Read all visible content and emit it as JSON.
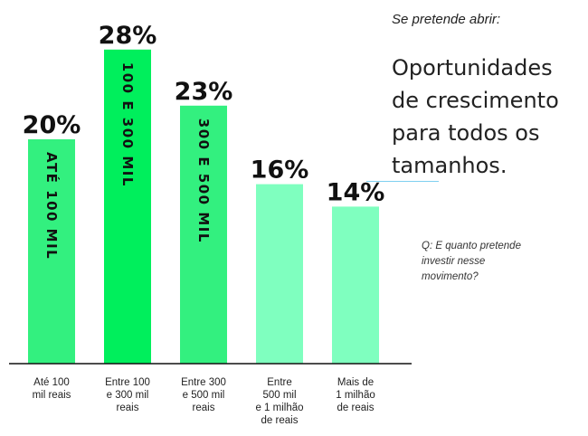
{
  "kicker": "Se pretende abrir:",
  "headline": "Oportunidades\nde crescimento\npara todos os\ntamanhos.",
  "question": "Q: E quanto pretende\ninvestir nesse\nmovimento?",
  "colors": {
    "bar_light": "#7fffbf",
    "bar_mid": "#33f07f",
    "bar_bright": "#00ef5c",
    "accent_line": "#7fd0f0",
    "axis": "#111111"
  },
  "chart_data": {
    "type": "bar",
    "unit": "%",
    "ylim": [
      0,
      30
    ],
    "categories": [
      [
        "Até 100",
        "mil reais"
      ],
      [
        "Entre 100",
        "e 300 mil",
        "reais"
      ],
      [
        "Entre 300",
        "e 500 mil",
        "reais"
      ],
      [
        "Entre",
        "500 mil",
        "e 1 milhão",
        "de reais"
      ],
      [
        "Mais de",
        "1 milhão",
        "de reais"
      ]
    ],
    "values": [
      20,
      28,
      23,
      16,
      14
    ],
    "value_labels": [
      "20%",
      "28%",
      "23%",
      "16%",
      "14%"
    ],
    "bar_labels": [
      "ATÉ 100 MIL",
      "100 E 300 MIL",
      "300 E 500 MIL",
      "",
      ""
    ],
    "bar_colors": [
      "#33f07f",
      "#00ef5c",
      "#33f07f",
      "#7fffbf",
      "#7fffbf"
    ]
  }
}
